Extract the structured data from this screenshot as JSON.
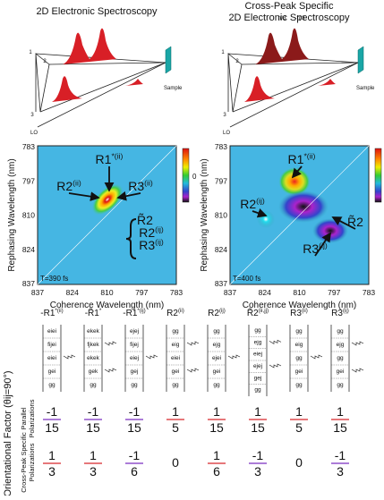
{
  "panels": [
    {
      "title_lines": [
        "2D Electronic Spectroscopy"
      ],
      "beam_labels": [
        "1",
        "2",
        "3",
        "LO"
      ],
      "sample": "Sample",
      "y_label": "Rephasing Wavelength (nm)",
      "x_label": "Coherence Wavelength (nm)",
      "x_ticks": [
        "837",
        "824",
        "810",
        "797",
        "783"
      ],
      "y_ticks": [
        "783",
        "797",
        "810",
        "824",
        "837"
      ],
      "time": "T=390 fs",
      "colorbar_label": "0",
      "annotations": [
        {
          "base": "R1",
          "sup": "*(ii)"
        },
        {
          "base": "R2",
          "sup": "(ii)"
        },
        {
          "base": "R3",
          "sup": "(ii)"
        },
        {
          "base": "R̃2",
          "sup": ""
        },
        {
          "base": "R2",
          "sup": "(ij)"
        },
        {
          "base": "R3",
          "sup": "(ij)"
        }
      ]
    },
    {
      "title_lines": [
        "Cross-Peak Specific",
        "2D Electronic Spectroscopy"
      ],
      "beam_labels": [
        "1",
        "2",
        "3",
        "LO",
        "π/3",
        "-π/3"
      ],
      "sample": "Sample",
      "y_label": "Rephasing Wavelength (nm)",
      "x_label": "Coherence Wavelength (nm)",
      "x_ticks": [
        "837",
        "824",
        "810",
        "797",
        "783"
      ],
      "y_ticks": [
        "783",
        "797",
        "810",
        "824",
        "837"
      ],
      "time": "T=400 fs",
      "colorbar_label": "0",
      "annotations": [
        {
          "base": "R1",
          "sup": "*(ii)"
        },
        {
          "base": "R2",
          "sup": "(ij)"
        },
        {
          "base": "R̃2",
          "sup": ""
        },
        {
          "base": "R3",
          "sup": "(ij)"
        }
      ]
    }
  ],
  "diagrams": [
    {
      "base": "-R1",
      "sup": "*(ii)",
      "levels": [
        "eiei",
        "fijei",
        "eiei",
        "gei",
        "gg"
      ]
    },
    {
      "base": "-R̃1",
      "sup": "*",
      "levels": [
        "ekek",
        "fjkek",
        "ekek",
        "gek",
        "gg"
      ]
    },
    {
      "base": "-R1",
      "sup": "*(ij)",
      "levels": [
        "ejej",
        "fijej",
        "eiej",
        "gej",
        "gg"
      ]
    },
    {
      "base": "R2",
      "sup": "(ii)",
      "levels": [
        "gg",
        "eig",
        "eiei",
        "gei",
        "gg"
      ]
    },
    {
      "base": "R2",
      "sup": "(ij)",
      "levels": [
        "gg",
        "ejg",
        "ejei",
        "gei",
        "gg"
      ]
    },
    {
      "base": "R̃2",
      "sup": "(ii,jj)",
      "levels": [
        "gg",
        "ejg",
        "eiej",
        "ejej",
        "gej",
        "gg"
      ]
    },
    {
      "base": "R3",
      "sup": "(ii)",
      "levels": [
        "gg",
        "eig",
        "gg",
        "gei",
        "gg"
      ]
    },
    {
      "base": "R3",
      "sup": "(ij)",
      "levels": [
        "gg",
        "ejg",
        "gg",
        "gei",
        "gg"
      ]
    }
  ],
  "factor_title": "Orientational Factor (θij=90°)",
  "rows": [
    {
      "label_lines": [
        "Parallel",
        "Polarizations"
      ],
      "values": [
        {
          "num": "-1",
          "den": "15",
          "color": "#7a2fc0"
        },
        {
          "num": "-1",
          "den": "15",
          "color": "#7a2fc0"
        },
        {
          "num": "-1",
          "den": "15",
          "color": "#7a2fc0"
        },
        {
          "num": "1",
          "den": "5",
          "color": "#d8262b"
        },
        {
          "num": "1",
          "den": "15",
          "color": "#d8262b"
        },
        {
          "num": "1",
          "den": "15",
          "color": "#d8262b"
        },
        {
          "num": "1",
          "den": "5",
          "color": "#d8262b"
        },
        {
          "num": "1",
          "den": "15",
          "color": "#d8262b"
        }
      ]
    },
    {
      "label_lines": [
        "Cross-Peak Specific",
        "Polarizations"
      ],
      "values": [
        {
          "num": "1",
          "den": "3",
          "color": "#d8262b"
        },
        {
          "num": "1",
          "den": "3",
          "color": "#d8262b"
        },
        {
          "num": "-1",
          "den": "6",
          "color": "#7a2fc0"
        },
        {
          "num": "0",
          "den": null,
          "color": "#2a94d6"
        },
        {
          "num": "1",
          "den": "6",
          "color": "#d8262b"
        },
        {
          "num": "-1",
          "den": "3",
          "color": "#7a2fc0"
        },
        {
          "num": "0",
          "den": null,
          "color": "#2a94d6"
        },
        {
          "num": "-1",
          "den": "3",
          "color": "#7a2fc0"
        }
      ]
    }
  ]
}
